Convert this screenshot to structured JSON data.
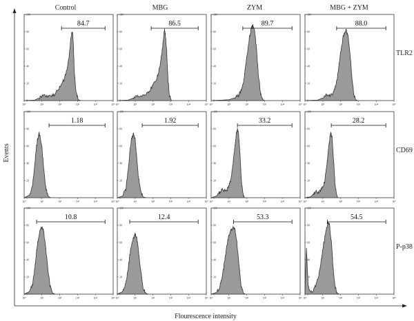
{
  "figure": {
    "column_titles": [
      "Control",
      "MBG",
      "ZYM",
      "MBG + ZYM"
    ],
    "row_labels": [
      "TLR2",
      "CD69",
      "P-p38"
    ],
    "y_axis_title": "Events",
    "x_axis_title": "Flourescence intensity"
  },
  "chart_data": {
    "type": "histogram-grid",
    "xlabel": "Flourescence intensity",
    "ylabel": "Events",
    "x_scale": "log",
    "xlim": [
      1,
      100000
    ],
    "ylim": [
      0,
      100
    ],
    "x_tick_labels": [
      "10⁰",
      "10¹",
      "10²",
      "10³",
      "10⁴",
      "10⁵"
    ],
    "y_tick_labels": [
      "0",
      "20",
      "40",
      "60",
      "80",
      "100"
    ],
    "fill_color": "#9a9a9a",
    "line_color": "#333333",
    "panels": [
      {
        "row": "TLR2",
        "column": "Control",
        "gate_percent": "84.7",
        "gate_x": [
          125,
          35000
        ],
        "peak_x": 500,
        "peak_y": 80,
        "profile": [
          [
            1,
            0
          ],
          [
            4,
            0.5
          ],
          [
            8,
            4
          ],
          [
            12,
            7
          ],
          [
            18,
            5
          ],
          [
            30,
            5
          ],
          [
            50,
            7
          ],
          [
            80,
            12
          ],
          [
            120,
            18
          ],
          [
            180,
            25
          ],
          [
            250,
            36
          ],
          [
            320,
            48
          ],
          [
            400,
            68
          ],
          [
            470,
            78
          ],
          [
            520,
            80
          ],
          [
            580,
            66
          ],
          [
            650,
            36
          ],
          [
            800,
            10
          ],
          [
            1100,
            1
          ],
          [
            1500,
            0
          ]
        ]
      },
      {
        "row": "TLR2",
        "column": "MBG",
        "gate_percent": "86.5",
        "gate_x": [
          80,
          35000
        ],
        "peak_x": 450,
        "peak_y": 82,
        "profile": [
          [
            1,
            0
          ],
          [
            4,
            0.5
          ],
          [
            8,
            3
          ],
          [
            12,
            6
          ],
          [
            18,
            5
          ],
          [
            30,
            6
          ],
          [
            50,
            9
          ],
          [
            80,
            14
          ],
          [
            120,
            20
          ],
          [
            180,
            28
          ],
          [
            250,
            40
          ],
          [
            320,
            55
          ],
          [
            400,
            75
          ],
          [
            450,
            82
          ],
          [
            520,
            74
          ],
          [
            600,
            55
          ],
          [
            700,
            25
          ],
          [
            850,
            6
          ],
          [
            1100,
            0
          ]
        ]
      },
      {
        "row": "TLR2",
        "column": "ZYM",
        "gate_percent": "89.7",
        "gate_x": [
          60,
          35000
        ],
        "peak_x": 220,
        "peak_y": 87,
        "profile": [
          [
            1,
            0
          ],
          [
            4,
            0.5
          ],
          [
            10,
            1
          ],
          [
            20,
            3
          ],
          [
            35,
            6
          ],
          [
            50,
            12
          ],
          [
            70,
            25
          ],
          [
            100,
            50
          ],
          [
            140,
            72
          ],
          [
            180,
            84
          ],
          [
            220,
            87
          ],
          [
            280,
            80
          ],
          [
            350,
            60
          ],
          [
            450,
            30
          ],
          [
            600,
            8
          ],
          [
            800,
            1
          ],
          [
            1000,
            0
          ]
        ]
      },
      {
        "row": "TLR2",
        "column": "MBG + ZYM",
        "gate_percent": "88.0",
        "gate_x": [
          60,
          35000
        ],
        "peak_x": 200,
        "peak_y": 82,
        "profile": [
          [
            1,
            0
          ],
          [
            5,
            0.5
          ],
          [
            10,
            3
          ],
          [
            15,
            7
          ],
          [
            22,
            5
          ],
          [
            35,
            8
          ],
          [
            50,
            15
          ],
          [
            70,
            30
          ],
          [
            100,
            55
          ],
          [
            140,
            74
          ],
          [
            200,
            82
          ],
          [
            260,
            76
          ],
          [
            330,
            58
          ],
          [
            420,
            30
          ],
          [
            550,
            8
          ],
          [
            700,
            1
          ],
          [
            900,
            0
          ]
        ]
      },
      {
        "row": "CD69",
        "column": "Control",
        "gate_percent": "1.18",
        "gate_x": [
          25,
          35000
        ],
        "peak_x": 7,
        "peak_y": 75,
        "profile": [
          [
            1,
            0
          ],
          [
            2,
            3
          ],
          [
            3,
            15
          ],
          [
            4,
            40
          ],
          [
            5,
            60
          ],
          [
            6,
            70
          ],
          [
            7,
            75
          ],
          [
            8,
            70
          ],
          [
            10,
            58
          ],
          [
            13,
            30
          ],
          [
            17,
            10
          ],
          [
            22,
            2
          ],
          [
            30,
            0
          ]
        ]
      },
      {
        "row": "CD69",
        "column": "MBG",
        "gate_percent": "1.92",
        "gate_x": [
          25,
          35000
        ],
        "peak_x": 8,
        "peak_y": 74,
        "profile": [
          [
            1,
            0
          ],
          [
            2,
            2
          ],
          [
            3,
            10
          ],
          [
            4,
            30
          ],
          [
            5,
            52
          ],
          [
            6,
            66
          ],
          [
            8,
            74
          ],
          [
            10,
            68
          ],
          [
            12,
            50
          ],
          [
            15,
            26
          ],
          [
            20,
            8
          ],
          [
            28,
            1
          ],
          [
            40,
            0
          ]
        ]
      },
      {
        "row": "CD69",
        "column": "ZYM",
        "gate_percent": "33.2",
        "gate_x": [
          30,
          35000
        ],
        "peak_x": 30,
        "peak_y": 80,
        "profile": [
          [
            1,
            0
          ],
          [
            2,
            2
          ],
          [
            3,
            6
          ],
          [
            4,
            9
          ],
          [
            6,
            8
          ],
          [
            8,
            10
          ],
          [
            10,
            14
          ],
          [
            13,
            22
          ],
          [
            17,
            40
          ],
          [
            22,
            62
          ],
          [
            27,
            76
          ],
          [
            30,
            80
          ],
          [
            35,
            74
          ],
          [
            42,
            50
          ],
          [
            50,
            20
          ],
          [
            60,
            5
          ],
          [
            75,
            0
          ]
        ]
      },
      {
        "row": "CD69",
        "column": "MBG + ZYM",
        "gate_percent": "28.2",
        "gate_x": [
          30,
          35000
        ],
        "peak_x": 28,
        "peak_y": 76,
        "profile": [
          [
            1,
            0
          ],
          [
            2,
            1
          ],
          [
            3,
            4
          ],
          [
            4,
            7
          ],
          [
            6,
            6
          ],
          [
            8,
            9
          ],
          [
            10,
            12
          ],
          [
            13,
            20
          ],
          [
            17,
            38
          ],
          [
            22,
            60
          ],
          [
            26,
            72
          ],
          [
            28,
            76
          ],
          [
            33,
            70
          ],
          [
            40,
            46
          ],
          [
            48,
            18
          ],
          [
            58,
            4
          ],
          [
            70,
            0
          ]
        ]
      },
      {
        "row": "P-p38",
        "column": "Control",
        "gate_percent": "10.8",
        "gate_x": [
          5,
          35000
        ],
        "peak_x": 10,
        "peak_y": 78,
        "profile": [
          [
            1,
            0
          ],
          [
            2,
            3
          ],
          [
            3,
            12
          ],
          [
            4,
            30
          ],
          [
            5,
            50
          ],
          [
            6,
            62
          ],
          [
            8,
            74
          ],
          [
            10,
            78
          ],
          [
            12,
            74
          ],
          [
            15,
            60
          ],
          [
            20,
            35
          ],
          [
            28,
            10
          ],
          [
            40,
            1
          ],
          [
            55,
            0
          ]
        ]
      },
      {
        "row": "P-p38",
        "column": "MBG",
        "gate_percent": "12.4",
        "gate_x": [
          5,
          35000
        ],
        "peak_x": 10,
        "peak_y": 70,
        "profile": [
          [
            1,
            0
          ],
          [
            2,
            3
          ],
          [
            3,
            12
          ],
          [
            4,
            28
          ],
          [
            5,
            45
          ],
          [
            6,
            55
          ],
          [
            8,
            65
          ],
          [
            10,
            70
          ],
          [
            12,
            66
          ],
          [
            15,
            52
          ],
          [
            20,
            30
          ],
          [
            28,
            8
          ],
          [
            40,
            1
          ],
          [
            55,
            0
          ]
        ]
      },
      {
        "row": "P-p38",
        "column": "ZYM",
        "gate_percent": "53.3",
        "gate_x": [
          18,
          35000
        ],
        "peak_x": 18,
        "peak_y": 78,
        "profile": [
          [
            1,
            0
          ],
          [
            2,
            2
          ],
          [
            3,
            8
          ],
          [
            4,
            18
          ],
          [
            5,
            30
          ],
          [
            6,
            42
          ],
          [
            8,
            58
          ],
          [
            10,
            68
          ],
          [
            13,
            74
          ],
          [
            18,
            78
          ],
          [
            22,
            75
          ],
          [
            28,
            60
          ],
          [
            36,
            35
          ],
          [
            48,
            10
          ],
          [
            65,
            1
          ],
          [
            85,
            0
          ]
        ]
      },
      {
        "row": "P-p38",
        "column": "MBG + ZYM",
        "gate_percent": "54.5",
        "gate_x": [
          18,
          35000
        ],
        "peak_x": 20,
        "peak_y": 84,
        "profile": [
          [
            1,
            0
          ],
          [
            1.2,
            55
          ],
          [
            1.5,
            10
          ],
          [
            2,
            3
          ],
          [
            3,
            4
          ],
          [
            4,
            10
          ],
          [
            6,
            22
          ],
          [
            8,
            38
          ],
          [
            10,
            52
          ],
          [
            13,
            66
          ],
          [
            17,
            78
          ],
          [
            20,
            84
          ],
          [
            24,
            80
          ],
          [
            30,
            62
          ],
          [
            38,
            30
          ],
          [
            50,
            8
          ],
          [
            65,
            1
          ],
          [
            85,
            0
          ]
        ]
      }
    ]
  }
}
